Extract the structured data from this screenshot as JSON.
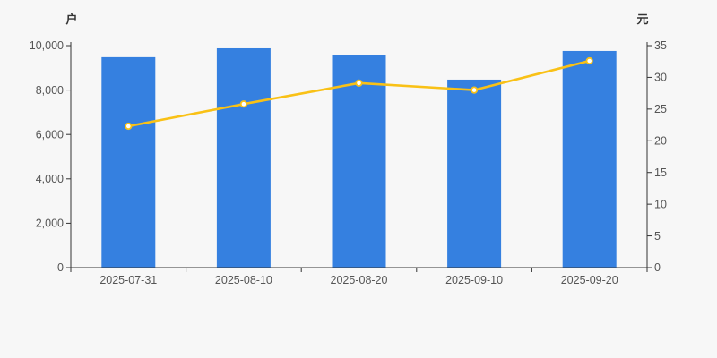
{
  "page": {
    "background_color": "#f7f7f7",
    "axis_line_color": "#333333",
    "tick_label_color": "#555555",
    "unit_label_color": "#333333"
  },
  "chart_data": {
    "type": "bar",
    "subtype": "combo-bar-line-dual-axis",
    "title": "",
    "categories": [
      "2025-07-31",
      "2025-08-10",
      "2025-08-20",
      "2025-09-10",
      "2025-09-20"
    ],
    "series": [
      {
        "name": "bar-series-left-axis",
        "type": "bar",
        "axis": "left",
        "unit": "户",
        "color": "#3580e0",
        "values": [
          9480,
          9880,
          9560,
          8470,
          9760
        ]
      },
      {
        "name": "line-series-right-axis",
        "type": "line",
        "axis": "right",
        "unit": "元",
        "color": "#f9c116",
        "marker_fill": "#ffffff",
        "values": [
          22.3,
          25.8,
          29.1,
          28.0,
          32.6
        ]
      }
    ],
    "left_axis": {
      "unit_label": "户",
      "min": 0,
      "max": 10000,
      "tick_labels": [
        "0",
        "2,000",
        "4,000",
        "6,000",
        "8,000",
        "10,000"
      ]
    },
    "right_axis": {
      "unit_label": "元",
      "min": 0,
      "max": 35,
      "tick_labels": [
        "0",
        "5",
        "10",
        "15",
        "20",
        "25",
        "30",
        "35"
      ]
    },
    "x_axis": {
      "tick_labels": [
        "2025-07-31",
        "2025-08-10",
        "2025-08-20",
        "2025-09-10",
        "2025-09-20"
      ]
    },
    "grid": false,
    "legend": null
  }
}
